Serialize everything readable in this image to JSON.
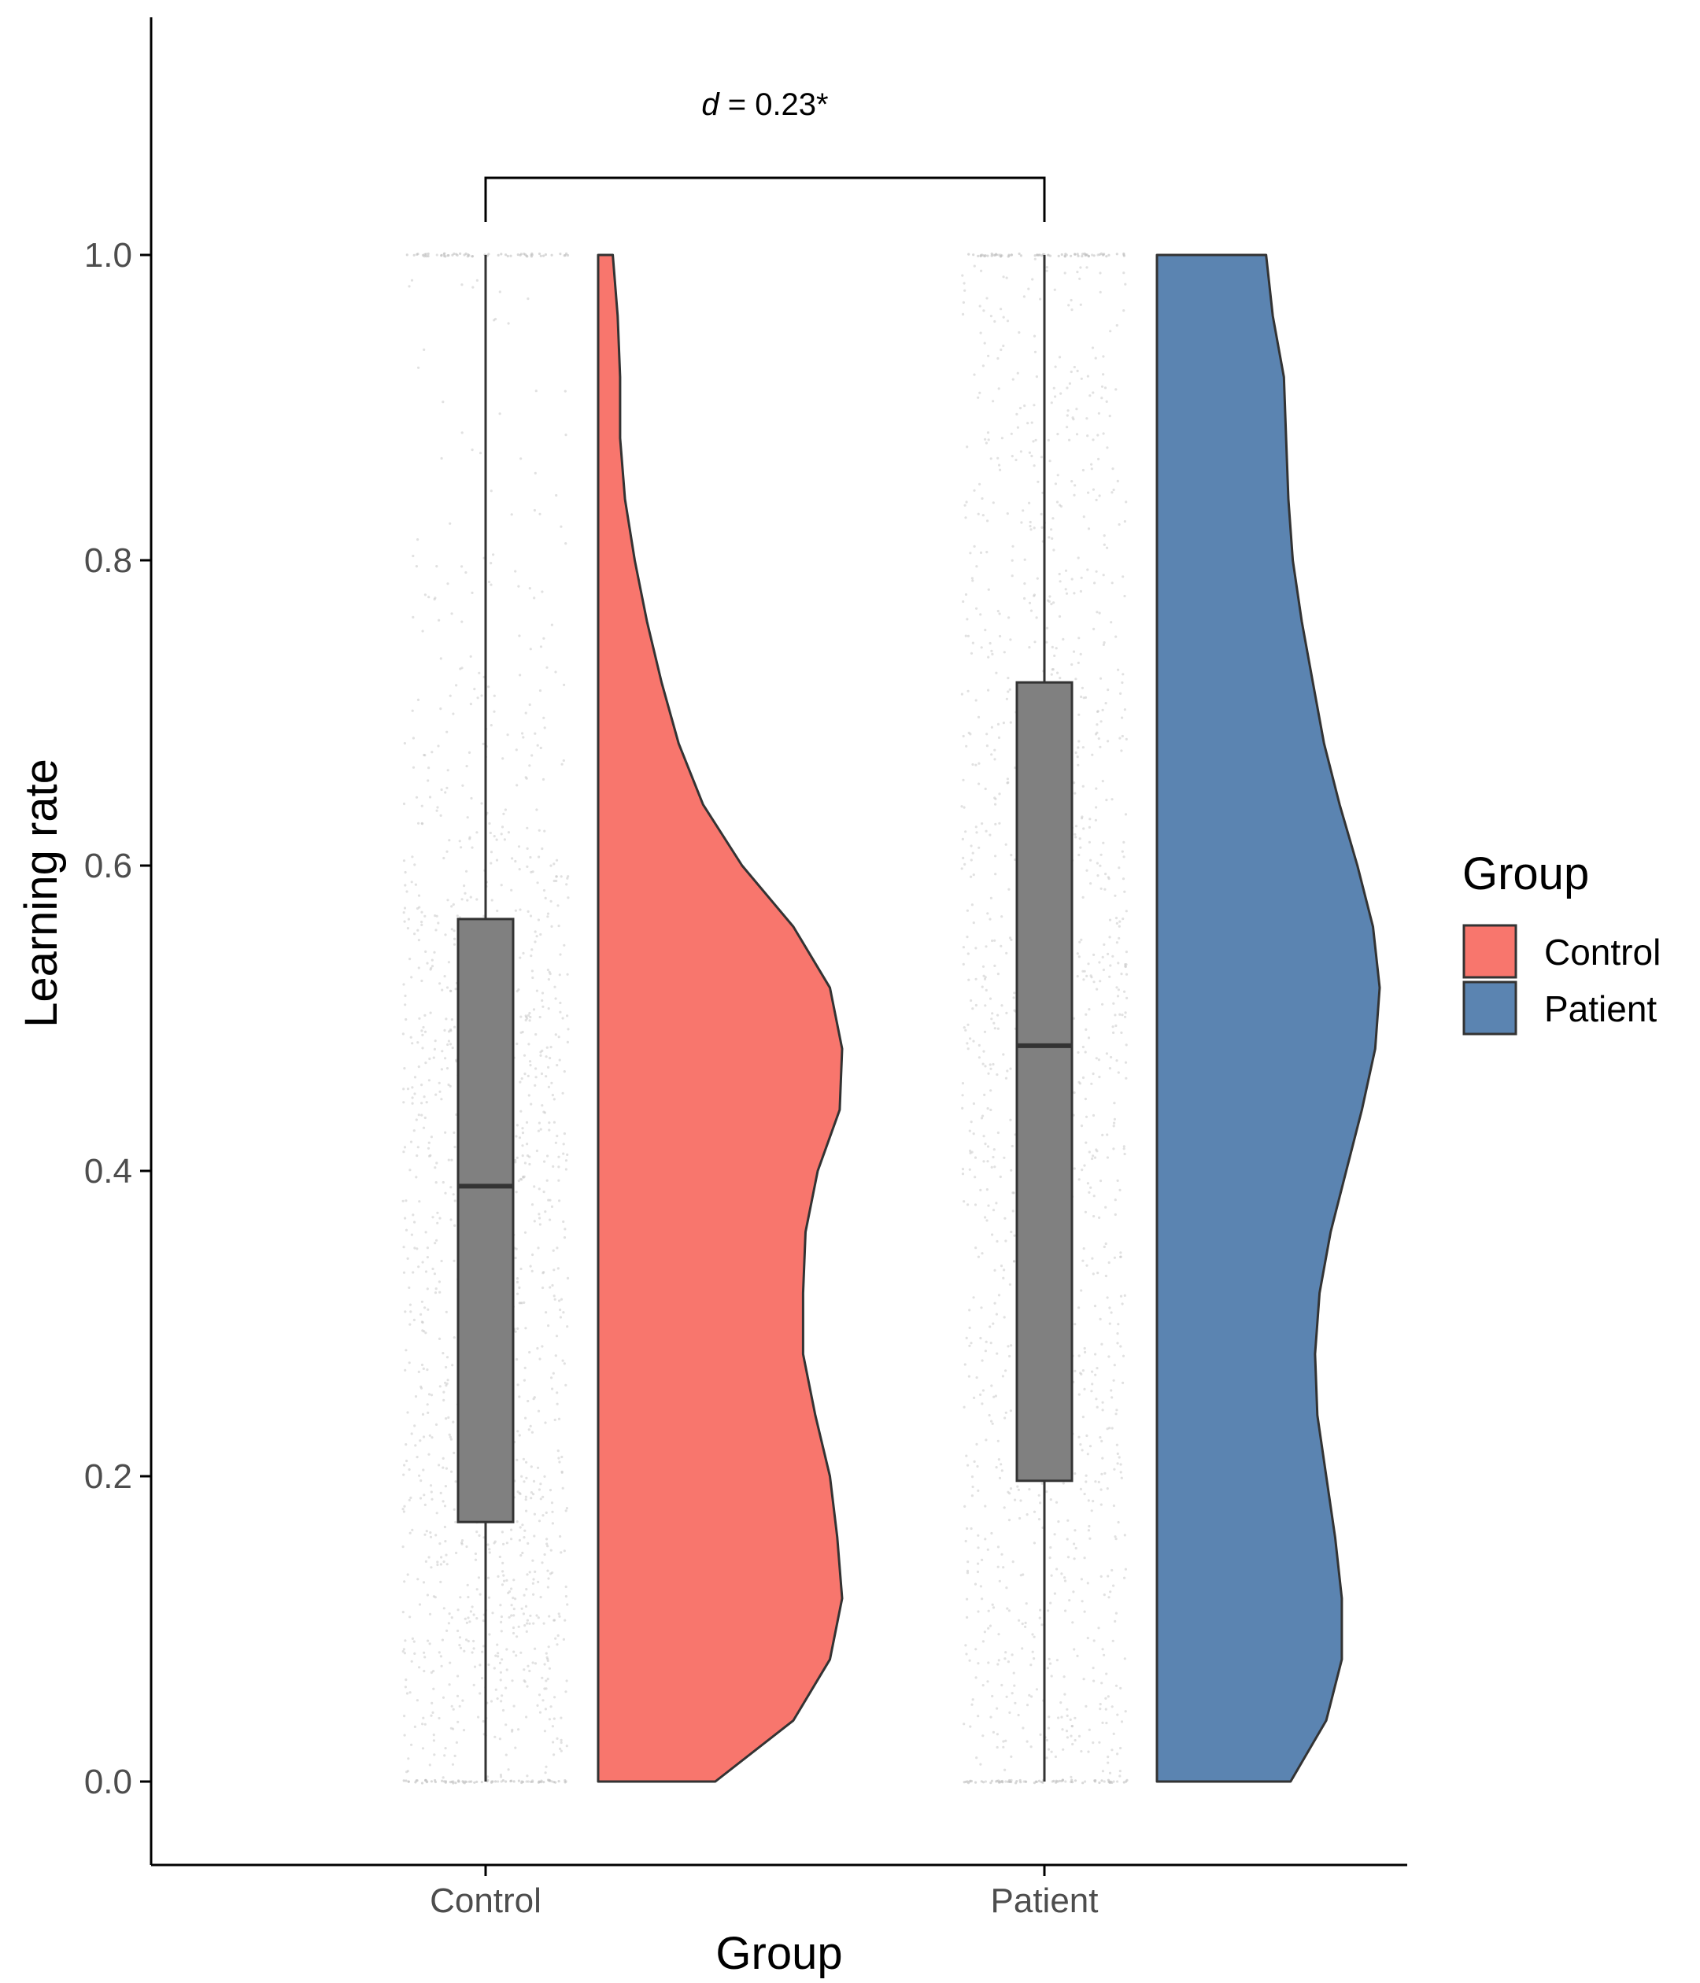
{
  "chart_data": {
    "type": "raincloud",
    "xlabel": "Group",
    "ylabel": "Learning rate",
    "ylim": [
      -0.05,
      1.15
    ],
    "yticks": [
      0.0,
      0.2,
      0.4,
      0.6,
      0.8,
      1.0
    ],
    "ytick_labels": [
      "0.0",
      "0.2",
      "0.4",
      "0.6",
      "0.8",
      "1.0"
    ],
    "categories": [
      "Control",
      "Patient"
    ],
    "grid": false,
    "legend": {
      "title": "Group",
      "placement": "right",
      "items": [
        {
          "label": "Control",
          "color": "#f8766d"
        },
        {
          "label": "Patient",
          "color": "#5b84b1"
        }
      ]
    },
    "annotation": {
      "italic_part": "d",
      "rest": " = 0.23*",
      "between": [
        "Control",
        "Patient"
      ]
    },
    "series": [
      {
        "name": "Control",
        "color": "#f8766d",
        "box": {
          "whisker_low": 0.0,
          "q1": 0.17,
          "median": 0.39,
          "q3": 0.565,
          "whisker_high": 1.0
        },
        "density": [
          [
            0.0,
            0.48
          ],
          [
            0.04,
            0.8
          ],
          [
            0.08,
            0.95
          ],
          [
            0.12,
            1.0
          ],
          [
            0.16,
            0.98
          ],
          [
            0.2,
            0.95
          ],
          [
            0.24,
            0.89
          ],
          [
            0.28,
            0.84
          ],
          [
            0.32,
            0.84
          ],
          [
            0.36,
            0.85
          ],
          [
            0.4,
            0.9
          ],
          [
            0.44,
            0.99
          ],
          [
            0.48,
            1.0
          ],
          [
            0.52,
            0.95
          ],
          [
            0.56,
            0.8
          ],
          [
            0.6,
            0.59
          ],
          [
            0.64,
            0.43
          ],
          [
            0.68,
            0.33
          ],
          [
            0.72,
            0.26
          ],
          [
            0.76,
            0.2
          ],
          [
            0.8,
            0.15
          ],
          [
            0.84,
            0.11
          ],
          [
            0.88,
            0.09
          ],
          [
            0.92,
            0.09
          ],
          [
            0.96,
            0.08
          ],
          [
            1.0,
            0.06
          ]
        ]
      },
      {
        "name": "Patient",
        "color": "#5b84b1",
        "box": {
          "whisker_low": 0.0,
          "q1": 0.197,
          "median": 0.482,
          "q3": 0.72,
          "whisker_high": 1.0
        },
        "density": [
          [
            0.0,
            0.6
          ],
          [
            0.04,
            0.76
          ],
          [
            0.08,
            0.83
          ],
          [
            0.12,
            0.83
          ],
          [
            0.16,
            0.8
          ],
          [
            0.2,
            0.76
          ],
          [
            0.24,
            0.72
          ],
          [
            0.28,
            0.71
          ],
          [
            0.32,
            0.73
          ],
          [
            0.36,
            0.78
          ],
          [
            0.4,
            0.85
          ],
          [
            0.44,
            0.92
          ],
          [
            0.48,
            0.98
          ],
          [
            0.52,
            1.0
          ],
          [
            0.56,
            0.97
          ],
          [
            0.6,
            0.9
          ],
          [
            0.64,
            0.82
          ],
          [
            0.68,
            0.75
          ],
          [
            0.72,
            0.7
          ],
          [
            0.76,
            0.65
          ],
          [
            0.8,
            0.61
          ],
          [
            0.84,
            0.59
          ],
          [
            0.88,
            0.58
          ],
          [
            0.92,
            0.57
          ],
          [
            0.96,
            0.52
          ],
          [
            1.0,
            0.49
          ]
        ]
      }
    ]
  }
}
